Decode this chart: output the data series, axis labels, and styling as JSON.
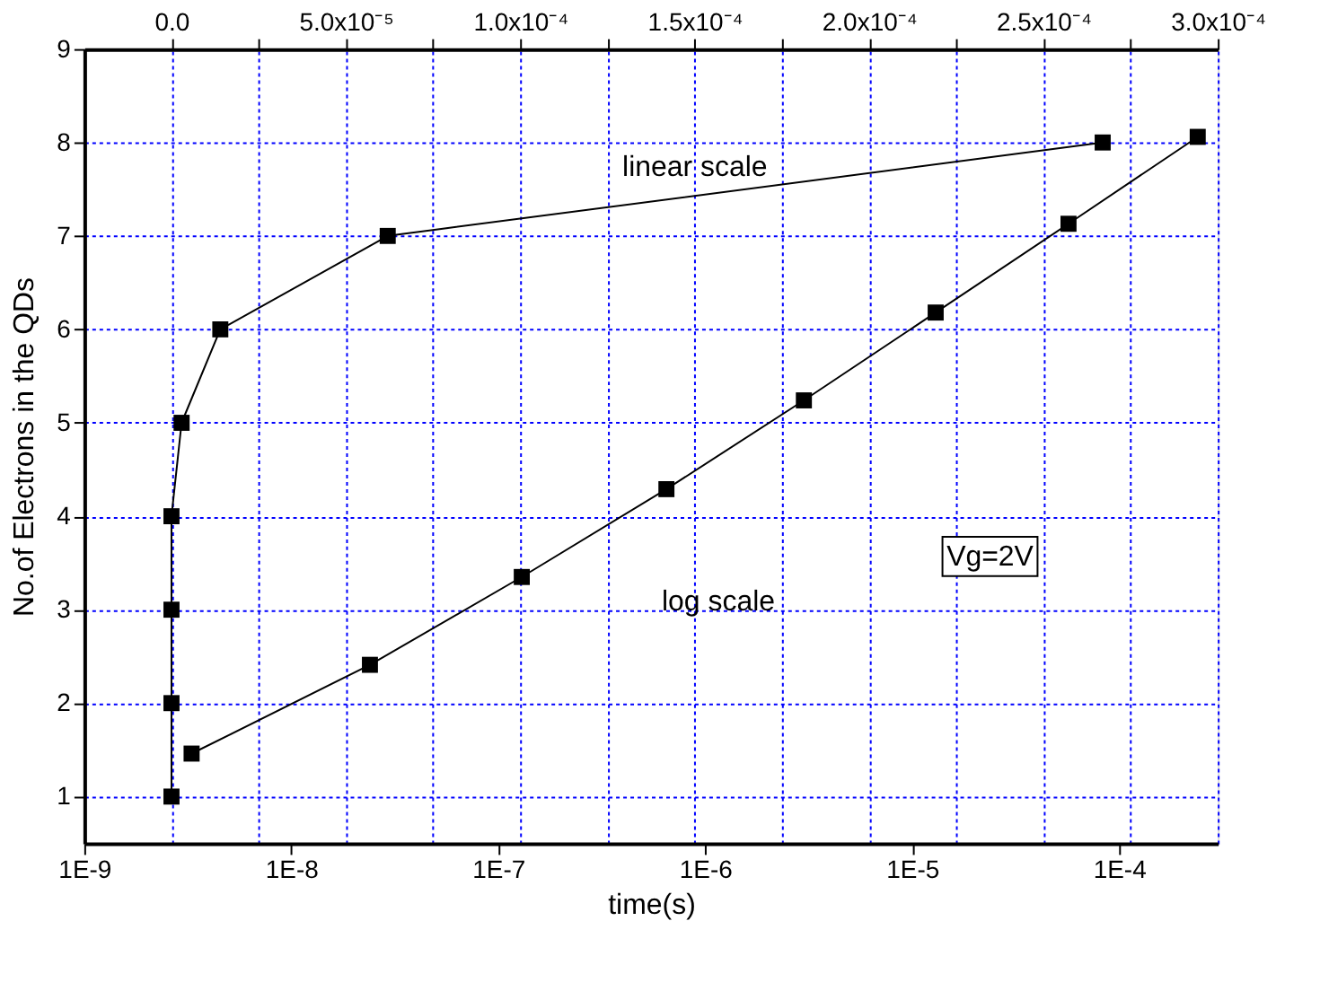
{
  "chart_data": {
    "type": "line",
    "xlabel": "time(s)",
    "ylabel": "No.of Electrons in the QDs",
    "log": "x",
    "grid": true,
    "marker": "square",
    "line_style": "solid",
    "xlim": [
      1e-09,
      0.0003
    ],
    "xticks": [
      {
        "value": 1e-09,
        "label": "1E-9"
      },
      {
        "value": 1e-08,
        "label": "1E-8"
      },
      {
        "value": 1e-07,
        "label": "1E-7"
      },
      {
        "value": 1e-06,
        "label": "1E-6"
      },
      {
        "value": 1e-05,
        "label": "1E-5"
      },
      {
        "value": 0.0001,
        "label": "1E-4"
      }
    ],
    "x2lim": [
      -2.5e-05,
      0.0003
    ],
    "x2ticks": [
      {
        "value": 0,
        "label": "0.0"
      },
      {
        "value": 2.5e-05,
        "label": null
      },
      {
        "value": 5e-05,
        "label": "5.0x10⁻⁵"
      },
      {
        "value": 7.5e-05,
        "label": null
      },
      {
        "value": 0.0001,
        "label": "1.0x10⁻⁴"
      },
      {
        "value": 0.000125,
        "label": null
      },
      {
        "value": 0.00015,
        "label": "1.5x10⁻⁴"
      },
      {
        "value": 0.000175,
        "label": null
      },
      {
        "value": 0.0002,
        "label": "2.0x10⁻⁴"
      },
      {
        "value": 0.000225,
        "label": null
      },
      {
        "value": 0.00025,
        "label": "2.5x10⁻⁴"
      },
      {
        "value": 0.000275,
        "label": null
      },
      {
        "value": 0.0003,
        "label": "3.0x10⁻⁴"
      }
    ],
    "ylim": [
      0.5,
      9
    ],
    "yticks": [
      1,
      2,
      3,
      4,
      5,
      6,
      7,
      8,
      9
    ],
    "annotations": [
      "Vg=2V"
    ],
    "series": [
      {
        "name": "linear scale",
        "color": "#000000",
        "axis": "x2",
        "x": [
          0,
          0,
          0,
          0,
          2.9e-06,
          1.4e-05,
          6.2e-05,
          0.000267
        ],
        "values": [
          1,
          2,
          3,
          4,
          5,
          6,
          7,
          8
        ]
      },
      {
        "name": "log scale",
        "color": "#000000",
        "x": [
          3.3e-09,
          2.4e-08,
          1.3e-07,
          6.5e-07,
          3e-06,
          1.3e-05,
          5.7e-05,
          0.00024
        ],
        "values": [
          1.46,
          2.41,
          3.35,
          4.29,
          5.24,
          6.18,
          7.13,
          8.06
        ]
      }
    ]
  }
}
